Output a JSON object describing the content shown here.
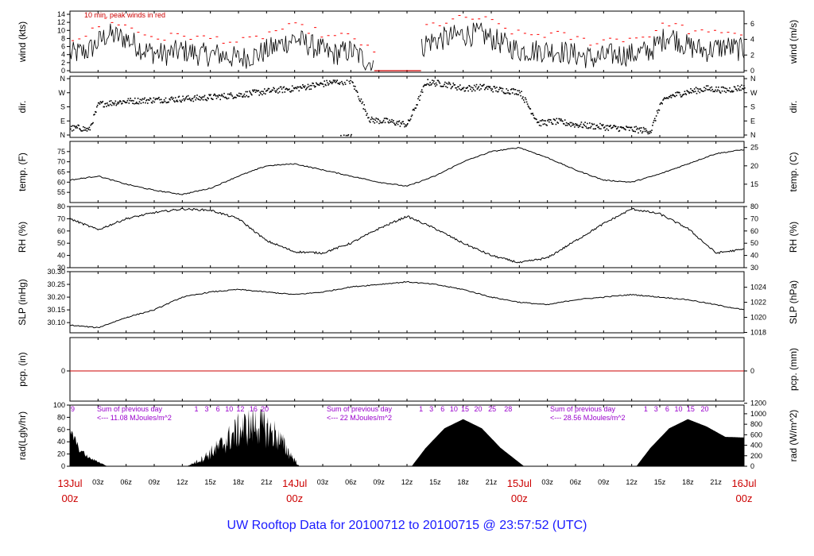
{
  "title": "UW Rooftop Data for 20100712  to  20100715 @ 23:57:52  (UTC)",
  "chart_data": {
    "type": "line",
    "time_axis": {
      "x_unit": "hours since 13Jul 00z",
      "range": [
        0,
        72
      ],
      "hour_ticks": [
        "03z",
        "06z",
        "09z",
        "12z",
        "15z",
        "18z",
        "21z",
        "03z",
        "06z",
        "09z",
        "12z",
        "15z",
        "18z",
        "21z",
        "03z",
        "06z",
        "09z",
        "12z",
        "15z",
        "18z",
        "21z"
      ],
      "day_labels": [
        {
          "date": "13Jul",
          "time": "00z"
        },
        {
          "date": "14Jul",
          "time": "00z"
        },
        {
          "date": "15Jul",
          "time": "00z"
        },
        {
          "date": "16Jul",
          "time": "00z"
        }
      ]
    },
    "panels": [
      {
        "key": "wind",
        "ylabel_left": "wind (kts)",
        "ylabel_right": "wind (m/s)",
        "ylim": [
          0,
          14
        ],
        "left_ticks": [
          "0",
          "2",
          "4",
          "6",
          "8",
          "10",
          "12",
          "14"
        ],
        "right_ticks": [
          "0",
          "2",
          "4",
          "6"
        ],
        "annotation": "10 min. peak winds in red",
        "gap": [
          32.5,
          37.5
        ],
        "x": [
          0,
          2,
          4,
          6,
          8,
          10,
          12,
          14,
          16,
          18,
          20,
          22,
          24,
          26,
          28,
          30,
          32,
          36,
          38,
          40,
          42,
          44,
          46,
          48,
          50,
          52,
          54,
          56,
          58,
          60,
          62,
          64,
          66,
          68,
          70,
          72
        ],
        "mean": [
          4,
          5,
          9,
          8,
          5,
          4,
          5,
          4,
          4,
          3,
          4,
          6,
          8,
          6,
          4,
          5,
          2,
          0,
          7,
          8,
          9,
          9,
          7,
          5,
          5,
          5,
          4,
          3,
          4,
          4,
          5,
          9,
          6,
          5,
          6,
          5
        ],
        "peak": [
          8,
          9,
          13,
          11,
          9,
          8,
          9,
          8,
          8,
          7,
          8,
          10,
          11,
          10,
          8,
          9,
          5,
          0,
          11,
          12,
          13,
          13,
          11,
          9,
          9,
          9,
          8,
          7,
          8,
          8,
          9,
          12,
          10,
          9,
          10,
          9
        ]
      },
      {
        "key": "dir",
        "ylabel_left": "dir.",
        "ylabel_right": "dir.",
        "left_ticks": [
          "N",
          "E",
          "S",
          "W",
          "N"
        ],
        "right_ticks": [
          "N",
          "E",
          "S",
          "W",
          "N"
        ],
        "x": [
          0,
          1,
          2,
          3,
          6,
          10,
          14,
          16,
          18,
          20,
          22,
          24,
          26,
          28,
          30,
          32,
          34,
          36,
          38,
          40,
          42,
          44,
          46,
          48,
          50,
          52,
          54,
          56,
          58,
          60,
          62,
          63,
          64,
          66,
          68,
          70,
          72
        ],
        "values": [
          45,
          50,
          35,
          200,
          220,
          230,
          240,
          250,
          260,
          275,
          290,
          300,
          320,
          340,
          350,
          100,
          90,
          70,
          340,
          330,
          300,
          310,
          290,
          280,
          80,
          90,
          70,
          60,
          50,
          40,
          30,
          200,
          250,
          280,
          300,
          290,
          310
        ]
      },
      {
        "key": "temp",
        "ylabel_left": "temp. (F)",
        "ylabel_right": "temp. (C)",
        "ylim": [
          50,
          80
        ],
        "left_ticks": [
          "55",
          "60",
          "65",
          "70",
          "75"
        ],
        "right_ticks": [
          "15",
          "20",
          "25"
        ],
        "x": [
          0,
          3,
          6,
          9,
          12,
          15,
          18,
          21,
          24,
          27,
          30,
          33,
          36,
          39,
          42,
          45,
          48,
          51,
          54,
          57,
          60,
          63,
          66,
          69,
          72
        ],
        "values": [
          61,
          63,
          59,
          56,
          54,
          57,
          63,
          68,
          69,
          66,
          63,
          60,
          58,
          63,
          70,
          75,
          77,
          72,
          66,
          61,
          60,
          64,
          69,
          74,
          76
        ]
      },
      {
        "key": "rh",
        "ylabel_left": "RH (%)",
        "ylabel_right": "RH (%)",
        "ylim": [
          30,
          80
        ],
        "left_ticks": [
          "30",
          "40",
          "50",
          "60",
          "70",
          "80"
        ],
        "right_ticks": [
          "30",
          "40",
          "50",
          "60",
          "70",
          "80"
        ],
        "x": [
          0,
          3,
          6,
          9,
          12,
          15,
          18,
          21,
          24,
          27,
          30,
          33,
          36,
          39,
          42,
          45,
          48,
          51,
          54,
          57,
          60,
          63,
          66,
          69,
          72
        ],
        "values": [
          70,
          61,
          70,
          75,
          78,
          77,
          70,
          52,
          43,
          42,
          50,
          62,
          72,
          62,
          50,
          40,
          34,
          38,
          52,
          66,
          78,
          74,
          62,
          42,
          45
        ]
      },
      {
        "key": "slp",
        "ylabel_left": "SLP (inHg)",
        "ylabel_right": "SLP (hPa)",
        "ylim": [
          30.06,
          30.3
        ],
        "left_ticks": [
          "30.10",
          "30.15",
          "30.20",
          "30.25",
          "30.30"
        ],
        "right_ticks": [
          "1018",
          "1020",
          "1022",
          "1024"
        ],
        "x": [
          0,
          3,
          6,
          9,
          12,
          15,
          18,
          21,
          24,
          27,
          30,
          33,
          36,
          39,
          42,
          45,
          48,
          51,
          54,
          57,
          60,
          63,
          66,
          69,
          72
        ],
        "values": [
          30.09,
          30.08,
          30.12,
          30.15,
          30.2,
          30.22,
          30.23,
          30.22,
          30.21,
          30.22,
          30.24,
          30.25,
          30.26,
          30.25,
          30.23,
          30.2,
          30.18,
          30.17,
          30.19,
          30.2,
          30.21,
          30.2,
          30.19,
          30.17,
          30.15
        ]
      },
      {
        "key": "pcp",
        "ylabel_left": "pcp. (in)",
        "ylabel_right": "pcp. (mm)",
        "left_ticks": [
          "0"
        ],
        "right_ticks": [
          "0"
        ],
        "values": [
          0
        ]
      },
      {
        "key": "rad",
        "ylabel_left": "rad(Lgly/hr)",
        "ylabel_right": "rad (W/m^2)",
        "ylim": [
          0,
          100
        ],
        "left_ticks": [
          "0",
          "20",
          "40",
          "60",
          "80",
          "100"
        ],
        "right_ticks": [
          "0",
          "200",
          "400",
          "600",
          "800",
          "1000",
          "1200"
        ],
        "hour_labels": [
          {
            "t": 0.3,
            "text": "9"
          },
          {
            "t": 13.5,
            "text": "1"
          },
          {
            "t": 14.6,
            "text": "3"
          },
          {
            "t": 15.8,
            "text": "6"
          },
          {
            "t": 17.0,
            "text": "10"
          },
          {
            "t": 18.2,
            "text": "12"
          },
          {
            "t": 19.6,
            "text": "16"
          },
          {
            "t": 20.8,
            "text": "20"
          },
          {
            "t": 37.5,
            "text": "1"
          },
          {
            "t": 38.6,
            "text": "3"
          },
          {
            "t": 39.8,
            "text": "6"
          },
          {
            "t": 41.0,
            "text": "10"
          },
          {
            "t": 42.2,
            "text": "15"
          },
          {
            "t": 43.6,
            "text": "20"
          },
          {
            "t": 45.1,
            "text": "25"
          },
          {
            "t": 46.8,
            "text": "28"
          },
          {
            "t": 61.5,
            "text": "1"
          },
          {
            "t": 62.6,
            "text": "3"
          },
          {
            "t": 63.8,
            "text": "6"
          },
          {
            "t": 65.0,
            "text": "10"
          },
          {
            "t": 66.3,
            "text": "15"
          },
          {
            "t": 67.8,
            "text": "20"
          }
        ],
        "sum_labels": [
          {
            "line1": "Sum of previous day",
            "line2": "<--- 11.08 MJoules/m^2"
          },
          {
            "line1": "Sum of previous day",
            "line2": "<--- 22 MJoules/m^2"
          },
          {
            "line1": "Sum of previous day",
            "line2": "<--- 28.56 MJoules/m^2"
          }
        ],
        "days": [
          {
            "x": [
              12.5,
              14,
              16,
              18,
              20,
              22,
              24.5
            ],
            "peak": [
              0,
              15,
              45,
              80,
              95,
              70,
              0
            ]
          },
          {
            "x": [
              36.5,
              38,
              40,
              42,
              44,
              46,
              48.5
            ],
            "peak": [
              0,
              30,
              62,
              77,
              62,
              30,
              0
            ]
          },
          {
            "x": [
              60.5,
              62,
              64,
              66,
              68,
              70,
              72
            ],
            "peak": [
              0,
              30,
              62,
              77,
              65,
              48,
              47
            ]
          }
        ],
        "evening_tail": {
          "x": [
            0,
            1,
            2,
            3,
            4
          ],
          "values": [
            65,
            30,
            15,
            8,
            0
          ]
        }
      }
    ]
  }
}
